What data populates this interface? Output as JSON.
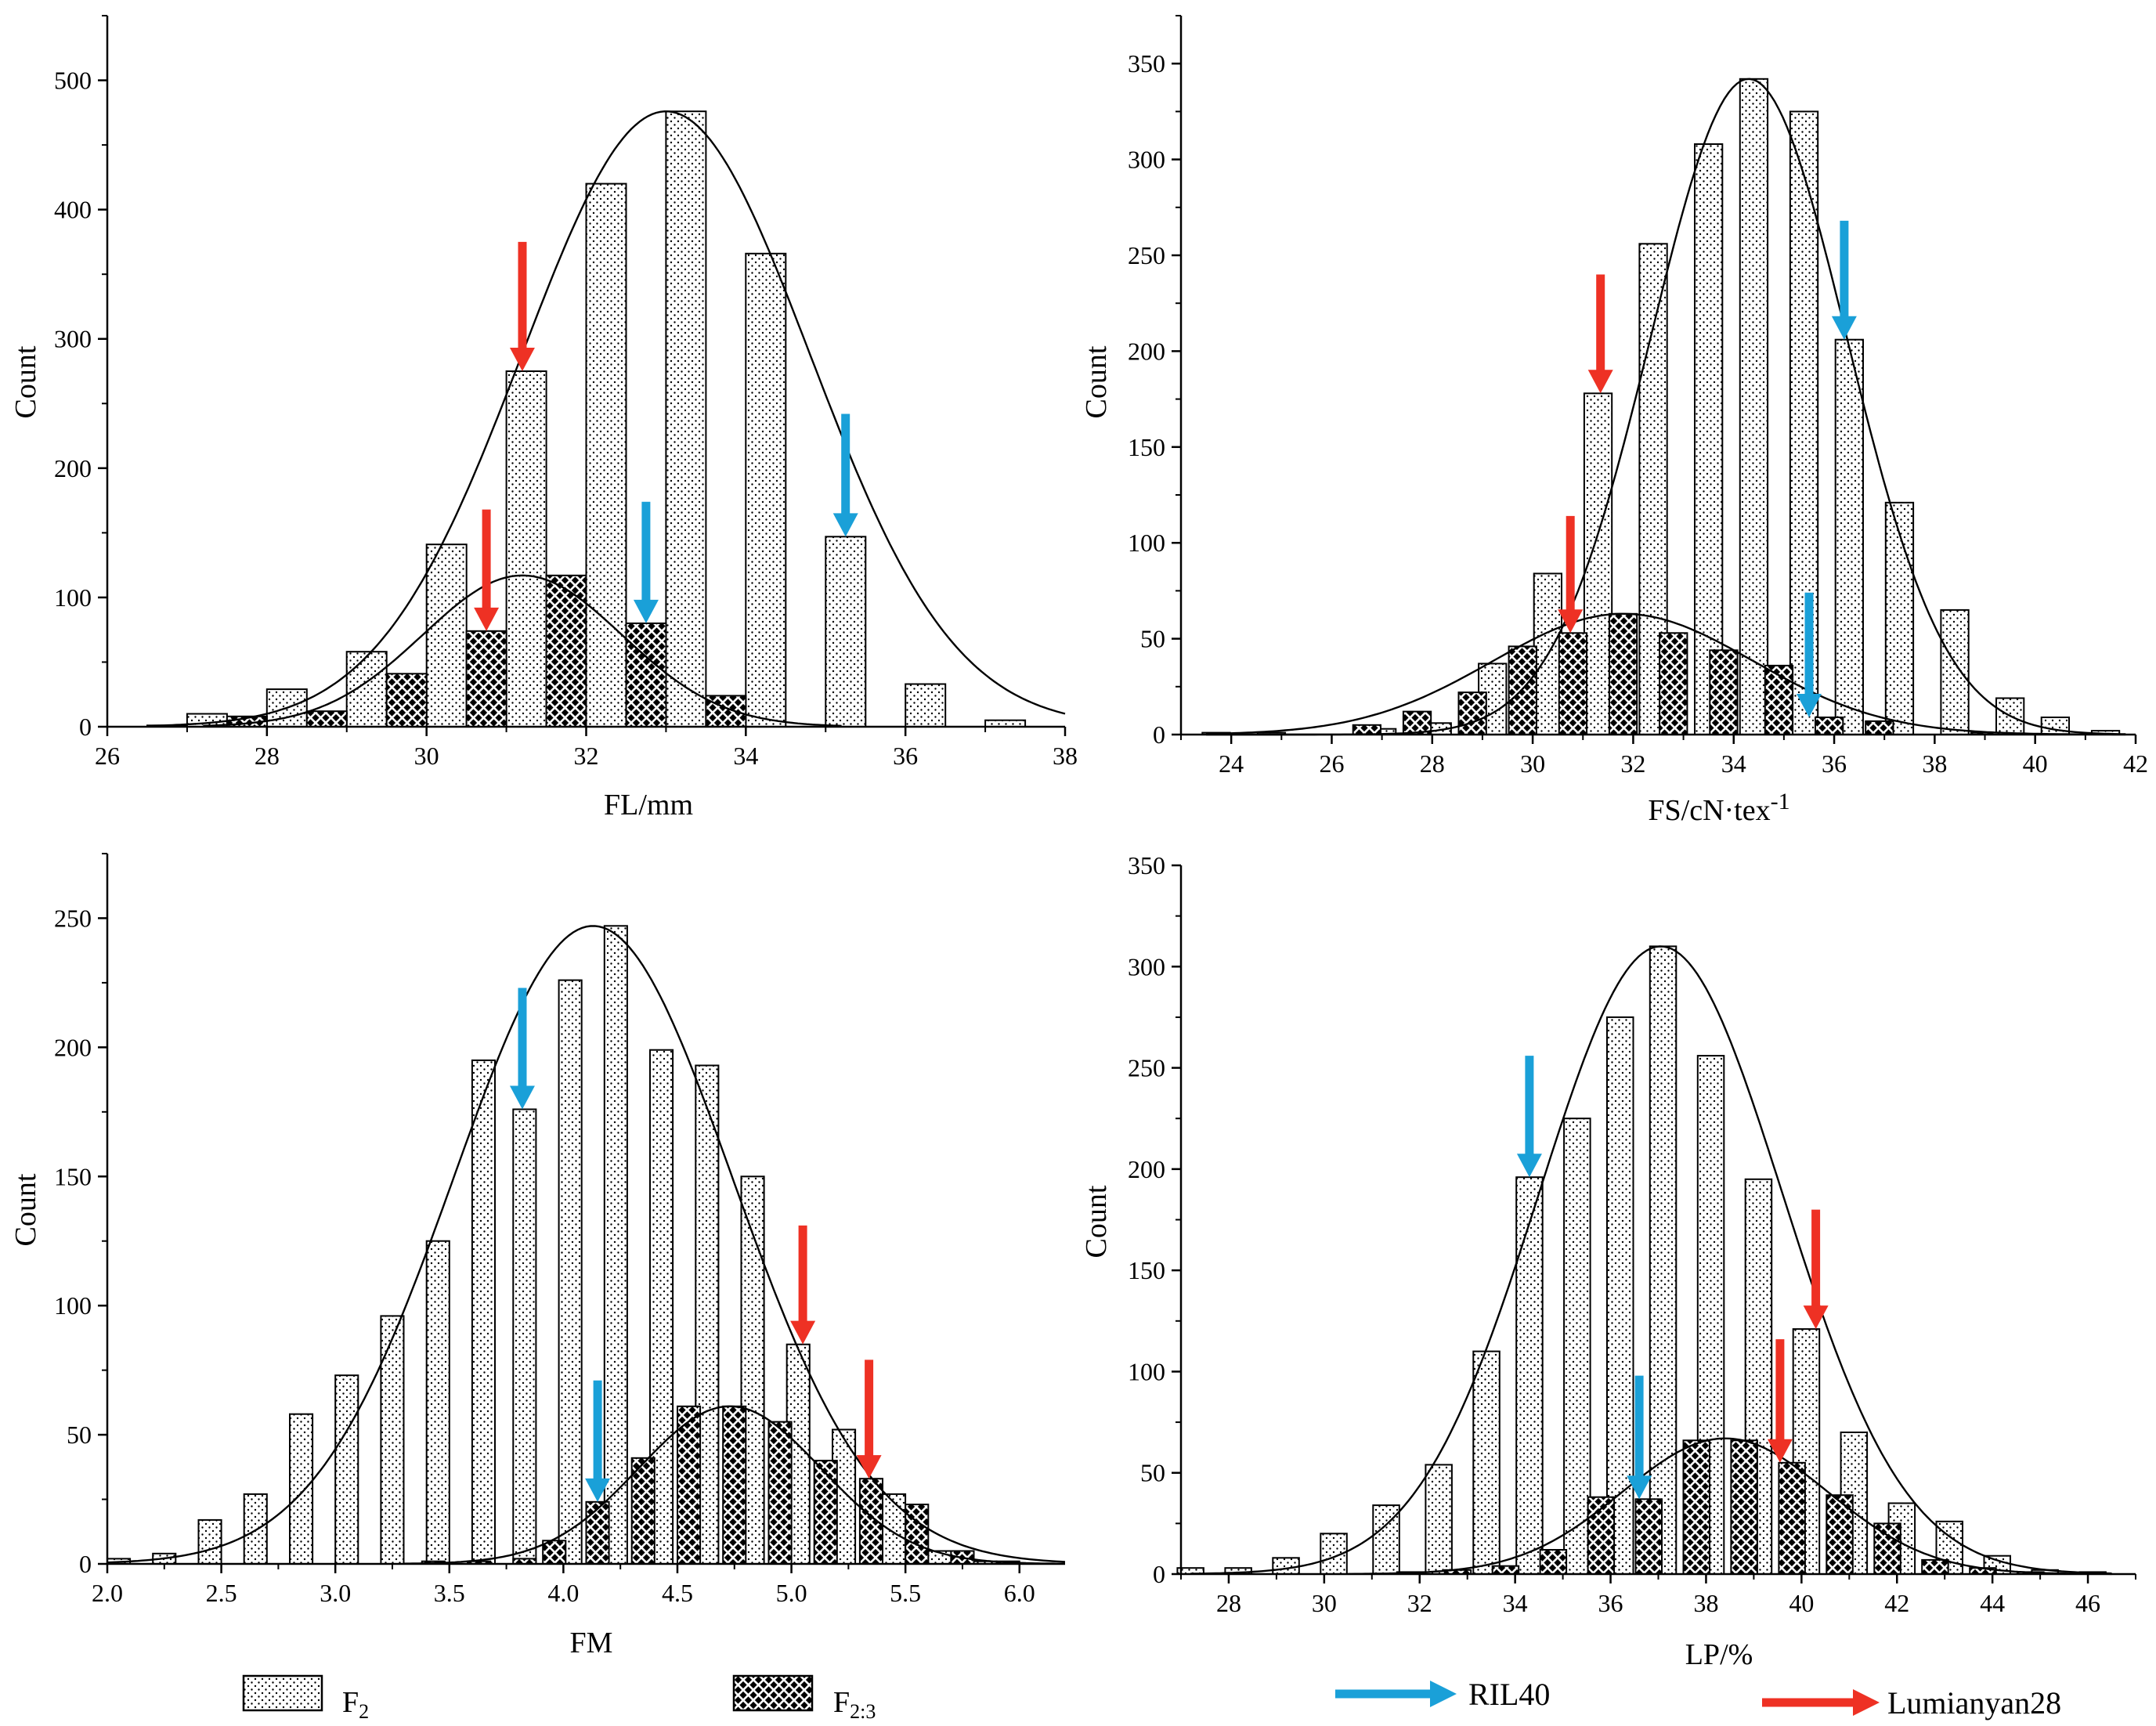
{
  "legend": {
    "f2_label": "F",
    "f2_sub": "2",
    "f23_label": "F",
    "f23_sub": "2:3",
    "ril_label": "RIL40",
    "lum_label": "Lumianyan28"
  },
  "colors": {
    "ril40_arrow": "#1aa0d8",
    "lumianyan28_arrow": "#ee3124",
    "bar_outline": "#000000",
    "curve": "#000000"
  },
  "chart_data": [
    {
      "id": "fl",
      "type": "bar",
      "title": "",
      "xlabel": "FL/mm",
      "xlabel_sup": "",
      "ylabel": "Count",
      "xlim": [
        26,
        38
      ],
      "ylim": [
        0,
        550
      ],
      "xticks": [
        26,
        28,
        30,
        32,
        34,
        36,
        38
      ],
      "yticks": [
        0,
        100,
        200,
        300,
        400,
        500
      ],
      "xtick_labels": [
        "26",
        "28",
        "30",
        "32",
        "34",
        "36",
        "38"
      ],
      "ytick_labels": [
        "0",
        "100",
        "200",
        "300",
        "400",
        "500"
      ],
      "bar_width": 0.5,
      "series": [
        {
          "name": "F2",
          "pattern": "dots",
          "x": [
            26.75,
            27.25,
            28.25,
            29.25,
            30.25,
            31.25,
            32.25,
            33.25,
            34.25,
            35.25,
            36.25,
            37.25
          ],
          "values": [
            1,
            10,
            29,
            58,
            141,
            275,
            420,
            476,
            366,
            147,
            33,
            5
          ]
        },
        {
          "name": "F2:3",
          "pattern": "cross",
          "x": [
            27.75,
            28.75,
            29.75,
            30.75,
            31.75,
            32.75,
            33.75
          ],
          "values": [
            8,
            12,
            41,
            74,
            117,
            80,
            24
          ]
        }
      ],
      "curves": [
        {
          "series": "F2",
          "mean": 33.0,
          "sd": 1.8,
          "peak": 476,
          "range": [
            26.5,
            38
          ]
        },
        {
          "series": "F2:3",
          "mean": 31.2,
          "sd": 1.25,
          "peak": 117,
          "range": [
            27.2,
            35.2
          ]
        }
      ],
      "arrows": [
        {
          "line": "Lumianyan28",
          "x": 31.2,
          "y_start": 375,
          "y_end": 275
        },
        {
          "line": "Lumianyan28",
          "x": 30.75,
          "y_start": 168,
          "y_end": 74
        },
        {
          "line": "RIL40",
          "x": 35.25,
          "y_start": 242,
          "y_end": 147
        },
        {
          "line": "RIL40",
          "x": 32.75,
          "y_start": 174,
          "y_end": 80
        }
      ]
    },
    {
      "id": "fs",
      "type": "bar",
      "title": "",
      "xlabel": "FS/cN·tex",
      "xlabel_sup": "-1",
      "ylabel": "Count",
      "xlim": [
        23,
        42
      ],
      "ylim": [
        0,
        375
      ],
      "xticks": [
        24,
        26,
        28,
        30,
        32,
        34,
        36,
        38,
        40,
        42
      ],
      "yticks": [
        0,
        50,
        100,
        150,
        200,
        250,
        300,
        350
      ],
      "xtick_labels": [
        "24",
        "26",
        "28",
        "30",
        "32",
        "34",
        "36",
        "38",
        "40",
        "42"
      ],
      "ytick_labels": [
        "0",
        "50",
        "100",
        "150",
        "200",
        "250",
        "300",
        "350"
      ],
      "bar_width": 0.55,
      "series": [
        {
          "name": "F2",
          "pattern": "dots",
          "x": [
            23.7,
            24.8,
            27.0,
            28.1,
            29.2,
            30.3,
            31.3,
            32.4,
            33.5,
            34.4,
            35.4,
            36.3,
            37.3,
            38.4,
            39.5,
            40.4,
            41.4
          ],
          "values": [
            1,
            1,
            3,
            6,
            37,
            84,
            178,
            256,
            308,
            342,
            325,
            206,
            121,
            65,
            19,
            9,
            2
          ]
        },
        {
          "name": "F2:3",
          "pattern": "cross",
          "x": [
            26.7,
            27.7,
            28.8,
            29.8,
            30.8,
            31.8,
            32.8,
            33.8,
            34.9,
            35.9,
            36.9,
            39.0
          ],
          "values": [
            5,
            12,
            22,
            46,
            53,
            63,
            53,
            44,
            36,
            9,
            7,
            1
          ]
        }
      ],
      "curves": [
        {
          "series": "F2",
          "mean": 34.3,
          "sd": 1.95,
          "peak": 342,
          "range": [
            23.5,
            41.8
          ]
        },
        {
          "series": "F2:3",
          "mean": 31.8,
          "sd": 2.6,
          "peak": 63,
          "range": [
            23.5,
            41.8
          ]
        }
      ],
      "arrows": [
        {
          "line": "Lumianyan28",
          "x": 31.35,
          "y_start": 240,
          "y_end": 178
        },
        {
          "line": "Lumianyan28",
          "x": 30.75,
          "y_start": 114,
          "y_end": 53
        },
        {
          "line": "RIL40",
          "x": 36.2,
          "y_start": 268,
          "y_end": 206
        },
        {
          "line": "RIL40",
          "x": 35.5,
          "y_start": 74,
          "y_end": 9
        }
      ]
    },
    {
      "id": "fm",
      "type": "bar",
      "title": "",
      "xlabel": "FM",
      "xlabel_sup": "",
      "ylabel": "Count",
      "xlim": [
        2.0,
        6.2
      ],
      "ylim": [
        0,
        275
      ],
      "xticks": [
        2.0,
        2.5,
        3.0,
        3.5,
        4.0,
        4.5,
        5.0,
        5.5,
        6.0
      ],
      "yticks": [
        0,
        50,
        100,
        150,
        200,
        250
      ],
      "xtick_labels": [
        "2.0",
        "2.5",
        "3.0",
        "3.5",
        "4.0",
        "4.5",
        "5.0",
        "5.5",
        "6.0"
      ],
      "ytick_labels": [
        "0",
        "50",
        "100",
        "150",
        "200",
        "250"
      ],
      "bar_width": 0.1,
      "series": [
        {
          "name": "F2",
          "pattern": "dots",
          "x": [
            2.05,
            2.25,
            2.45,
            2.65,
            2.85,
            3.05,
            3.25,
            3.45,
            3.65,
            3.83,
            4.03,
            4.23,
            4.43,
            4.63,
            4.83,
            5.03,
            5.23,
            5.45,
            5.65,
            5.85
          ],
          "values": [
            2,
            4,
            17,
            27,
            58,
            73,
            96,
            125,
            195,
            176,
            226,
            247,
            199,
            193,
            150,
            85,
            52,
            27,
            5,
            1
          ]
        },
        {
          "name": "F2:3",
          "pattern": "cross",
          "x": [
            3.43,
            3.63,
            3.83,
            3.96,
            4.15,
            4.35,
            4.55,
            4.75,
            4.95,
            5.15,
            5.35,
            5.55,
            5.75,
            5.95
          ],
          "values": [
            1,
            1,
            2,
            9,
            24,
            41,
            61,
            61,
            55,
            40,
            33,
            23,
            5,
            1
          ]
        }
      ],
      "curves": [
        {
          "series": "F2",
          "mean": 4.13,
          "sd": 0.61,
          "peak": 247,
          "range": [
            2.0,
            6.2
          ]
        },
        {
          "series": "F2:3",
          "mean": 4.73,
          "sd": 0.4,
          "peak": 61,
          "range": [
            3.3,
            6.2
          ]
        }
      ],
      "arrows": [
        {
          "line": "RIL40",
          "x": 3.82,
          "y_start": 223,
          "y_end": 176
        },
        {
          "line": "RIL40",
          "x": 4.15,
          "y_start": 71,
          "y_end": 24
        },
        {
          "line": "Lumianyan28",
          "x": 5.05,
          "y_start": 131,
          "y_end": 85
        },
        {
          "line": "Lumianyan28",
          "x": 5.34,
          "y_start": 79,
          "y_end": 33
        }
      ]
    },
    {
      "id": "lp",
      "type": "bar",
      "title": "",
      "xlabel": "LP/%",
      "xlabel_sup": "",
      "ylabel": "Count",
      "xlim": [
        27,
        47
      ],
      "ylim": [
        0,
        350
      ],
      "xticks": [
        28,
        30,
        32,
        34,
        36,
        38,
        40,
        42,
        44,
        46
      ],
      "yticks": [
        0,
        50,
        100,
        150,
        200,
        250,
        300,
        350
      ],
      "xtick_labels": [
        "28",
        "30",
        "32",
        "34",
        "36",
        "38",
        "40",
        "42",
        "44",
        "46"
      ],
      "ytick_labels": [
        "0",
        "50",
        "100",
        "150",
        "200",
        "250",
        "300",
        "350"
      ],
      "bar_width": 0.55,
      "series": [
        {
          "name": "F2",
          "pattern": "dots",
          "x": [
            27.2,
            28.2,
            29.2,
            30.2,
            31.3,
            32.4,
            33.4,
            34.3,
            35.3,
            36.2,
            37.1,
            38.1,
            39.1,
            40.1,
            41.1,
            42.1,
            43.1,
            44.1,
            45.1,
            46.1
          ],
          "values": [
            3,
            3,
            8,
            20,
            34,
            54,
            110,
            196,
            225,
            275,
            310,
            256,
            195,
            121,
            70,
            35,
            26,
            9,
            2,
            1
          ]
        },
        {
          "name": "F2:3",
          "pattern": "cross",
          "x": [
            31.8,
            32.8,
            33.8,
            34.8,
            35.8,
            36.8,
            37.8,
            38.8,
            39.8,
            40.8,
            41.8,
            42.8,
            43.8,
            44.8
          ],
          "values": [
            1,
            2,
            4,
            12,
            38,
            37,
            66,
            66,
            55,
            39,
            25,
            7,
            3,
            1
          ]
        }
      ],
      "curves": [
        {
          "series": "F2",
          "mean": 37.05,
          "sd": 2.55,
          "peak": 310,
          "range": [
            27.2,
            46.5
          ]
        },
        {
          "series": "F2:3",
          "mean": 38.4,
          "sd": 2.15,
          "peak": 67,
          "range": [
            30.5,
            46.5
          ]
        }
      ],
      "arrows": [
        {
          "line": "RIL40",
          "x": 34.3,
          "y_start": 256,
          "y_end": 196
        },
        {
          "line": "RIL40",
          "x": 36.6,
          "y_start": 98,
          "y_end": 37
        },
        {
          "line": "Lumianyan28",
          "x": 40.3,
          "y_start": 180,
          "y_end": 121
        },
        {
          "line": "Lumianyan28",
          "x": 39.55,
          "y_start": 116,
          "y_end": 55
        }
      ]
    }
  ]
}
